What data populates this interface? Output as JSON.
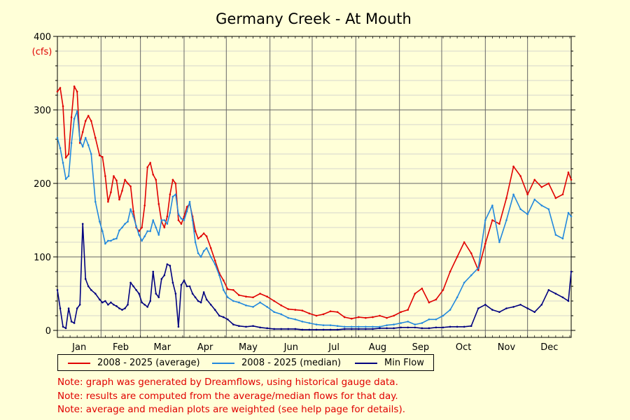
{
  "chart_data": {
    "type": "line",
    "title": "Germany Creek - At Mouth",
    "ylabel": "(cfs)",
    "ylim": [
      0,
      400
    ],
    "yticks": [
      0,
      100,
      200,
      300,
      400
    ],
    "xlim": [
      1,
      366
    ],
    "month_labels": [
      "Jan",
      "Feb",
      "Mar",
      "Apr",
      "May",
      "Jun",
      "Jul",
      "Aug",
      "Sep",
      "Oct",
      "Nov",
      "Dec"
    ],
    "month_starts": [
      1,
      32,
      60,
      91,
      121,
      152,
      182,
      213,
      244,
      274,
      305,
      335
    ],
    "grid": true,
    "legend_position": "bottom",
    "series": [
      {
        "name": "2008 - 2025 (average)",
        "color": "#e00000",
        "x": [
          1,
          3,
          5,
          7,
          9,
          11,
          13,
          15,
          17,
          19,
          21,
          23,
          25,
          28,
          31,
          33,
          35,
          37,
          39,
          41,
          43,
          45,
          47,
          49,
          51,
          53,
          55,
          57,
          59,
          61,
          63,
          65,
          67,
          69,
          71,
          73,
          75,
          77,
          79,
          81,
          83,
          85,
          87,
          89,
          91,
          93,
          95,
          97,
          99,
          101,
          103,
          105,
          107,
          110,
          113,
          116,
          119,
          122,
          126,
          130,
          135,
          140,
          145,
          150,
          155,
          160,
          165,
          170,
          175,
          180,
          185,
          190,
          195,
          200,
          205,
          210,
          215,
          220,
          225,
          230,
          235,
          240,
          245,
          250,
          255,
          260,
          265,
          270,
          275,
          280,
          285,
          290,
          295,
          300,
          305,
          310,
          315,
          320,
          325,
          330,
          335,
          340,
          345,
          350,
          355,
          360,
          364,
          366
        ],
        "y": [
          325,
          330,
          305,
          235,
          240,
          290,
          332,
          325,
          255,
          270,
          285,
          292,
          285,
          262,
          238,
          236,
          210,
          175,
          188,
          210,
          204,
          178,
          190,
          205,
          200,
          196,
          162,
          140,
          135,
          140,
          170,
          222,
          228,
          212,
          205,
          172,
          148,
          140,
          155,
          185,
          205,
          200,
          150,
          145,
          155,
          168,
          172,
          155,
          135,
          125,
          128,
          132,
          128,
          112,
          95,
          78,
          68,
          56,
          55,
          48,
          46,
          45,
          50,
          46,
          40,
          34,
          29,
          28,
          27,
          23,
          20,
          22,
          26,
          25,
          18,
          16,
          18,
          17,
          18,
          20,
          17,
          20,
          25,
          28,
          50,
          57,
          38,
          42,
          55,
          80,
          100,
          120,
          105,
          82,
          118,
          150,
          145,
          180,
          223,
          210,
          185,
          205,
          195,
          200,
          180,
          185,
          215,
          205
        ]
      },
      {
        "name": "2008 - 2025 (median)",
        "color": "#2288dd",
        "x": [
          1,
          3,
          5,
          7,
          9,
          11,
          13,
          15,
          17,
          19,
          21,
          23,
          25,
          28,
          31,
          33,
          35,
          37,
          39,
          41,
          43,
          45,
          47,
          49,
          51,
          53,
          55,
          57,
          59,
          61,
          63,
          65,
          67,
          69,
          71,
          73,
          75,
          77,
          79,
          81,
          83,
          85,
          87,
          89,
          91,
          93,
          95,
          97,
          99,
          101,
          103,
          105,
          107,
          110,
          113,
          116,
          119,
          122,
          126,
          130,
          135,
          140,
          145,
          150,
          155,
          160,
          165,
          170,
          175,
          180,
          185,
          190,
          195,
          200,
          205,
          210,
          215,
          220,
          225,
          230,
          235,
          240,
          245,
          250,
          255,
          260,
          265,
          270,
          275,
          280,
          285,
          290,
          295,
          300,
          305,
          310,
          315,
          320,
          325,
          330,
          335,
          340,
          345,
          350,
          355,
          360,
          364,
          366
        ],
        "y": [
          262,
          248,
          228,
          206,
          210,
          255,
          288,
          298,
          258,
          250,
          262,
          252,
          240,
          175,
          148,
          135,
          118,
          122,
          122,
          124,
          125,
          136,
          140,
          145,
          148,
          165,
          155,
          142,
          130,
          122,
          128,
          135,
          135,
          150,
          140,
          130,
          150,
          150,
          145,
          160,
          182,
          185,
          158,
          152,
          150,
          162,
          175,
          150,
          120,
          105,
          100,
          108,
          112,
          100,
          90,
          75,
          55,
          45,
          40,
          38,
          34,
          32,
          38,
          32,
          25,
          22,
          17,
          15,
          12,
          10,
          8,
          7,
          7,
          6,
          5,
          5,
          5,
          5,
          5,
          5,
          7,
          8,
          10,
          12,
          8,
          10,
          15,
          15,
          20,
          28,
          45,
          65,
          75,
          85,
          150,
          170,
          120,
          150,
          185,
          165,
          158,
          178,
          170,
          165,
          130,
          125,
          160,
          155
        ]
      },
      {
        "name": "Min Flow",
        "color": "#000080",
        "x": [
          1,
          3,
          5,
          7,
          9,
          11,
          13,
          15,
          17,
          19,
          21,
          23,
          25,
          28,
          31,
          33,
          35,
          37,
          39,
          41,
          43,
          45,
          47,
          49,
          51,
          53,
          55,
          57,
          59,
          61,
          63,
          65,
          67,
          69,
          71,
          73,
          75,
          77,
          79,
          81,
          83,
          85,
          87,
          89,
          91,
          93,
          95,
          97,
          99,
          101,
          103,
          105,
          107,
          110,
          113,
          116,
          119,
          122,
          126,
          130,
          135,
          140,
          145,
          150,
          155,
          160,
          165,
          170,
          175,
          180,
          185,
          190,
          195,
          200,
          205,
          210,
          215,
          220,
          225,
          230,
          235,
          240,
          245,
          250,
          255,
          260,
          265,
          270,
          275,
          280,
          285,
          290,
          295,
          300,
          305,
          310,
          315,
          320,
          325,
          330,
          335,
          340,
          345,
          350,
          355,
          360,
          364,
          366
        ],
        "y": [
          55,
          30,
          5,
          3,
          30,
          12,
          10,
          30,
          35,
          145,
          70,
          60,
          55,
          50,
          42,
          38,
          40,
          35,
          38,
          35,
          33,
          30,
          28,
          30,
          35,
          65,
          60,
          55,
          50,
          38,
          35,
          32,
          40,
          80,
          50,
          45,
          70,
          75,
          90,
          88,
          65,
          50,
          5,
          62,
          68,
          60,
          60,
          50,
          45,
          40,
          38,
          52,
          42,
          35,
          28,
          20,
          18,
          15,
          8,
          6,
          5,
          6,
          4,
          3,
          2,
          2,
          2,
          2,
          1,
          1,
          1,
          1,
          1,
          1,
          2,
          2,
          2,
          2,
          2,
          3,
          3,
          3,
          4,
          4,
          4,
          3,
          3,
          4,
          4,
          5,
          5,
          5,
          6,
          30,
          35,
          28,
          25,
          30,
          32,
          35,
          30,
          25,
          35,
          55,
          50,
          45,
          40,
          80
        ]
      }
    ]
  },
  "notes": [
    "Note: graph was generated by Dreamflows, using historical gauge data.",
    "Note: results are computed from the average/median flows for that day.",
    "Note: average and median plots are weighted (see help page for details)."
  ]
}
